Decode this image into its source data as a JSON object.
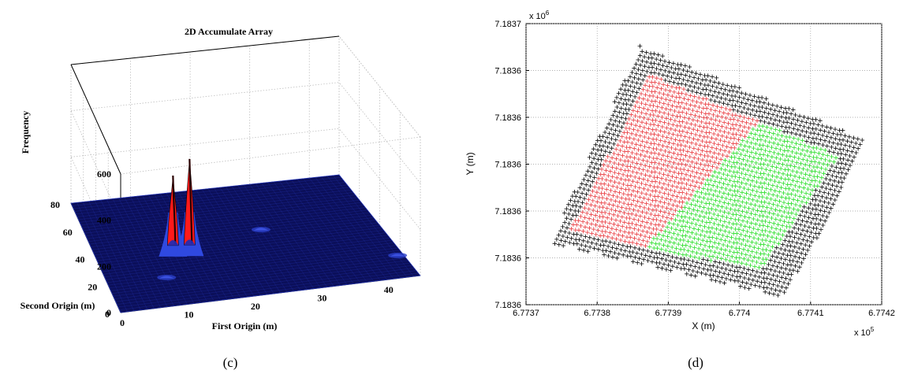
{
  "figure_labels": [
    "(c)",
    "(d)"
  ],
  "chart_data": [
    {
      "type": "surface",
      "title": "2D Accumulate Array",
      "xlabel": "First Origin (m)",
      "ylabel": "Second Origin (m)",
      "zlabel": "Frequency",
      "x_ticks": [
        "0",
        "10",
        "20",
        "30",
        "40"
      ],
      "y_ticks": [
        "0",
        "20",
        "40",
        "60",
        "80"
      ],
      "z_ticks": [
        "0",
        "200",
        "400",
        "600"
      ],
      "xlim": [
        0,
        45
      ],
      "ylim": [
        0,
        80
      ],
      "zlim": [
        0,
        600
      ],
      "grid": true,
      "colors": {
        "floor": "#0b0f5a",
        "mesh": "#2b3ec8",
        "peak": "#ff1a1a",
        "peak_dark": "#2a0000"
      },
      "peaks": [
        {
          "x": 12,
          "y": 38,
          "z": 330
        },
        {
          "x": 14.5,
          "y": 37,
          "z": 400
        }
      ],
      "minor_bumps": [
        {
          "x": 9,
          "y": 20,
          "z": 6
        },
        {
          "x": 27,
          "y": 46,
          "z": 10
        },
        {
          "x": 44,
          "y": 16,
          "z": 6
        }
      ]
    },
    {
      "type": "scatter",
      "xlabel": "X (m)",
      "ylabel": "Y (m)",
      "x_ticks": [
        "6.7737",
        "6.7738",
        "6.7739",
        "6.774",
        "6.7741",
        "6.7742"
      ],
      "y_ticks": [
        "7.1836",
        "7.1836",
        "7.1836",
        "7.1836",
        "7.1836",
        "7.1836",
        "7.1837"
      ],
      "x_exponent": "x 10",
      "x_exponent_power": "5",
      "y_exponent": "x 10",
      "y_exponent_power": "6",
      "xlim": [
        677370,
        677420
      ],
      "ylim": [
        7183600,
        7183700
      ],
      "grid": true,
      "marker": "+",
      "series": [
        {
          "region": "border",
          "color": "#000000"
        },
        {
          "region": "left",
          "color": "#e8353a"
        },
        {
          "region": "right",
          "color": "#22dd22"
        }
      ],
      "regions": {
        "outer": [
          [
            677373.5,
            7183622
          ],
          [
            677386,
            7183692
          ],
          [
            677419.5,
            7183657
          ],
          [
            677406,
            7183603
          ]
        ],
        "inner": [
          [
            677376,
            7183626
          ],
          [
            677387.5,
            7183682
          ],
          [
            677414,
            7183653
          ],
          [
            677403,
            7183612
          ]
        ],
        "split_top_t": 0.58,
        "split_bottom_t": 0.4
      }
    }
  ]
}
